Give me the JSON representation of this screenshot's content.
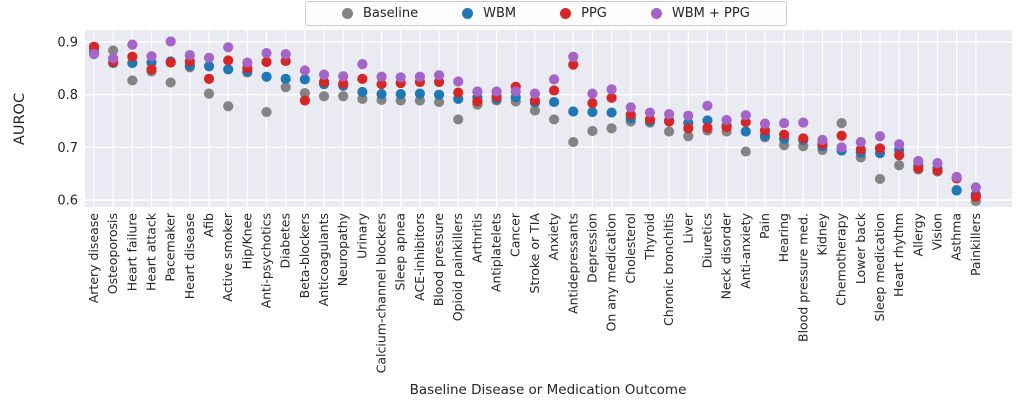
{
  "chart_data": {
    "type": "scatter",
    "title": "",
    "xlabel": "Baseline Disease or Medication Outcome",
    "ylabel": "AUROC",
    "ylim": [
      0.587,
      0.923
    ],
    "yticks": [
      0.9,
      0.8,
      0.7,
      0.6
    ],
    "grid": true,
    "legend_position": "top-center",
    "plot_background": "#eaeaf2",
    "gridline_color": "#ffffff",
    "categories": [
      "Artery disease",
      "Osteoporosis",
      "Heart failure",
      "Heart attack",
      "Pacemaker",
      "Heart disease",
      "Afib",
      "Active smoker",
      "Hip/Knee",
      "Anti-psychotics",
      "Diabetes",
      "Beta-blockers",
      "Anticoagulants",
      "Neuropathy",
      "Urinary",
      "Calcium-channel blockers",
      "Sleep apnea",
      "ACE-inhibitors",
      "Blood pressure",
      "Opioid painkillers",
      "Arthritis",
      "Antiplatelets",
      "Cancer",
      "Stroke or TIA",
      "Anxiety",
      "Antidepressants",
      "Depression",
      "On any medication",
      "Cholesterol",
      "Thyroid",
      "Chronic bronchitis",
      "Liver",
      "Diuretics",
      "Neck disorder",
      "Anti-anxiety",
      "Pain",
      "Hearing",
      "Blood pressure med.",
      "Kidney",
      "Chemotherapy",
      "Lower back",
      "Sleep medication",
      "Heart rhythm",
      "Allergy",
      "Vision",
      "Asthma",
      "Painkillers"
    ],
    "series": [
      {
        "name": "Baseline",
        "color": "#848484",
        "values": [
          0.888,
          0.884,
          0.827,
          0.844,
          0.823,
          0.852,
          0.802,
          0.778,
          0.842,
          0.767,
          0.814,
          0.803,
          0.797,
          0.797,
          0.792,
          0.79,
          0.789,
          0.789,
          0.786,
          0.753,
          0.781,
          0.789,
          0.787,
          0.77,
          0.753,
          0.71,
          0.731,
          0.736,
          0.749,
          0.747,
          0.73,
          0.721,
          0.732,
          0.73,
          0.692,
          0.719,
          0.704,
          0.702,
          0.695,
          0.746,
          0.681,
          0.64,
          0.666,
          0.658,
          0.654,
          0.619,
          0.598
        ]
      },
      {
        "name": "WBM",
        "color": "#1f77b4",
        "values": [
          0.881,
          0.86,
          0.86,
          0.861,
          0.863,
          0.855,
          0.854,
          0.848,
          0.844,
          0.834,
          0.83,
          0.829,
          0.82,
          0.817,
          0.805,
          0.801,
          0.801,
          0.802,
          0.8,
          0.792,
          0.795,
          0.792,
          0.795,
          0.785,
          0.786,
          0.768,
          0.767,
          0.766,
          0.755,
          0.75,
          0.751,
          0.746,
          0.751,
          0.741,
          0.73,
          0.722,
          0.716,
          0.714,
          0.702,
          0.694,
          0.69,
          0.689,
          0.695,
          0.665,
          0.66,
          0.618,
          0.61
        ]
      },
      {
        "name": "PPG",
        "color": "#d62728",
        "values": [
          0.891,
          0.862,
          0.872,
          0.848,
          0.861,
          0.863,
          0.83,
          0.865,
          0.85,
          0.862,
          0.864,
          0.789,
          0.824,
          0.821,
          0.83,
          0.82,
          0.822,
          0.824,
          0.824,
          0.804,
          0.787,
          0.796,
          0.815,
          0.789,
          0.808,
          0.857,
          0.784,
          0.794,
          0.762,
          0.753,
          0.749,
          0.736,
          0.737,
          0.738,
          0.748,
          0.732,
          0.724,
          0.717,
          0.706,
          0.722,
          0.696,
          0.698,
          0.685,
          0.66,
          0.656,
          0.641,
          0.606
        ]
      },
      {
        "name": "WBM + PPG",
        "color": "#a464c8",
        "values": [
          0.877,
          0.869,
          0.895,
          0.873,
          0.901,
          0.875,
          0.87,
          0.89,
          0.861,
          0.879,
          0.877,
          0.846,
          0.838,
          0.835,
          0.858,
          0.834,
          0.833,
          0.834,
          0.837,
          0.825,
          0.806,
          0.806,
          0.806,
          0.802,
          0.829,
          0.872,
          0.802,
          0.81,
          0.776,
          0.766,
          0.763,
          0.76,
          0.779,
          0.752,
          0.761,
          0.745,
          0.746,
          0.747,
          0.714,
          0.7,
          0.71,
          0.721,
          0.706,
          0.674,
          0.67,
          0.644,
          0.624
        ]
      }
    ]
  }
}
